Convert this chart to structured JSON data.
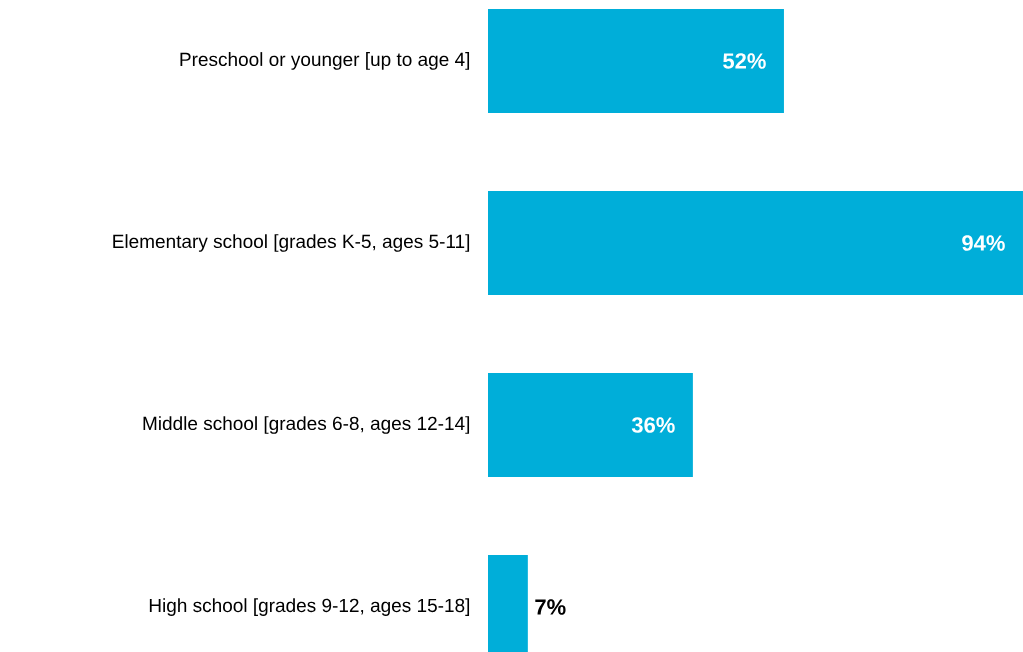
{
  "chart_data": {
    "type": "bar",
    "orientation": "horizontal",
    "categories": [
      "Preschool or younger [up to age 4]",
      "Elementary school [grades K-5, ages 5-11]",
      "Middle school [grades 6-8, ages 12-14]",
      "High school [grades 9-12, ages 15-18]"
    ],
    "values": [
      52,
      94,
      36,
      7
    ],
    "value_labels": [
      "52%",
      "94%",
      "36%",
      "7%"
    ],
    "color": "#00aed9",
    "tick_labels": "y"
  }
}
